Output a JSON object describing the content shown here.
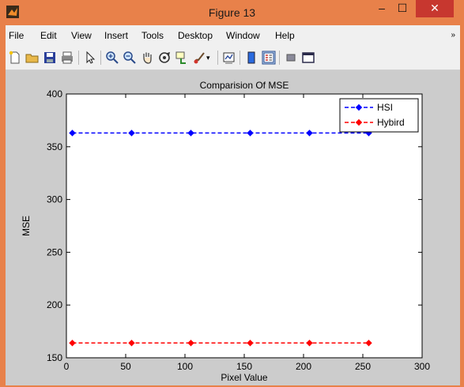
{
  "window": {
    "title": "Figure 13",
    "minimize_glyph": "–",
    "maximize_glyph": "☐",
    "close_glyph": "✕"
  },
  "menu": {
    "items": [
      "File",
      "Edit",
      "View",
      "Insert",
      "Tools",
      "Desktop",
      "Window",
      "Help"
    ],
    "overflow_glyph": "»"
  },
  "toolbar": {
    "icons": [
      "new-figure-icon",
      "open-file-icon",
      "save-icon",
      "print-icon",
      "pointer-icon",
      "zoom-in-icon",
      "zoom-out-icon",
      "pan-hand-icon",
      "rotate-3d-icon",
      "data-cursor-icon",
      "brush-icon",
      "link-plot-icon",
      "colorbar-icon",
      "legend-icon",
      "hide-plot-tools-icon",
      "show-plot-tools-icon"
    ]
  },
  "colors": {
    "titlebar": "#e8814a",
    "close_button": "#c7372f",
    "series_hsi": "#0000ff",
    "series_hybird": "#ff0000"
  },
  "chart_data": {
    "type": "line",
    "title": "Comparision Of MSE",
    "xlabel": "Pixel Value",
    "ylabel": "MSE",
    "xlim": [
      0,
      300
    ],
    "ylim": [
      150,
      400
    ],
    "xticks": [
      0,
      50,
      100,
      150,
      200,
      250,
      300
    ],
    "yticks": [
      150,
      200,
      250,
      300,
      350,
      400
    ],
    "legend_position": "top-right",
    "grid": false,
    "series": [
      {
        "name": "HSI",
        "line_style": "dashed",
        "marker": "diamond",
        "x": [
          5,
          55,
          105,
          155,
          205,
          255
        ],
        "y": [
          363,
          363,
          363,
          363,
          363,
          363
        ]
      },
      {
        "name": "Hybird",
        "line_style": "dashed",
        "marker": "diamond",
        "x": [
          5,
          55,
          105,
          155,
          205,
          255
        ],
        "y": [
          164,
          164,
          164,
          164,
          164,
          164
        ]
      }
    ]
  }
}
